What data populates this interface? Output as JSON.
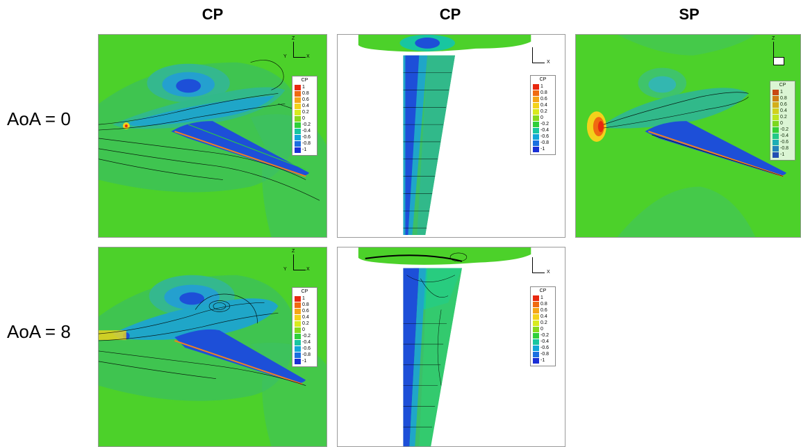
{
  "column_titles": [
    "CP",
    "CP",
    "SP"
  ],
  "row_labels": [
    "AoA = 0",
    "AoA = 8"
  ],
  "legend": {
    "title": "CP",
    "levels": [
      "1",
      "0.8",
      "0.6",
      "0.4",
      "0.2",
      "0",
      "-0.2",
      "-0.4",
      "-0.6",
      "-0.8",
      "-1"
    ],
    "colors": [
      "#e8280f",
      "#f06a10",
      "#f5a617",
      "#f3d21b",
      "#d8ea1e",
      "#88d91b",
      "#2fcf3a",
      "#18c6a0",
      "#12a6d8",
      "#1a6fe0",
      "#1a2fd6"
    ]
  },
  "axis_labels": {
    "x": "X",
    "y": "Y",
    "z": "Z"
  },
  "colors": {
    "field_green": "#4cd12a",
    "low_pressure_blue": "#1d4fd8",
    "mid_cyan": "#19c2b0"
  }
}
